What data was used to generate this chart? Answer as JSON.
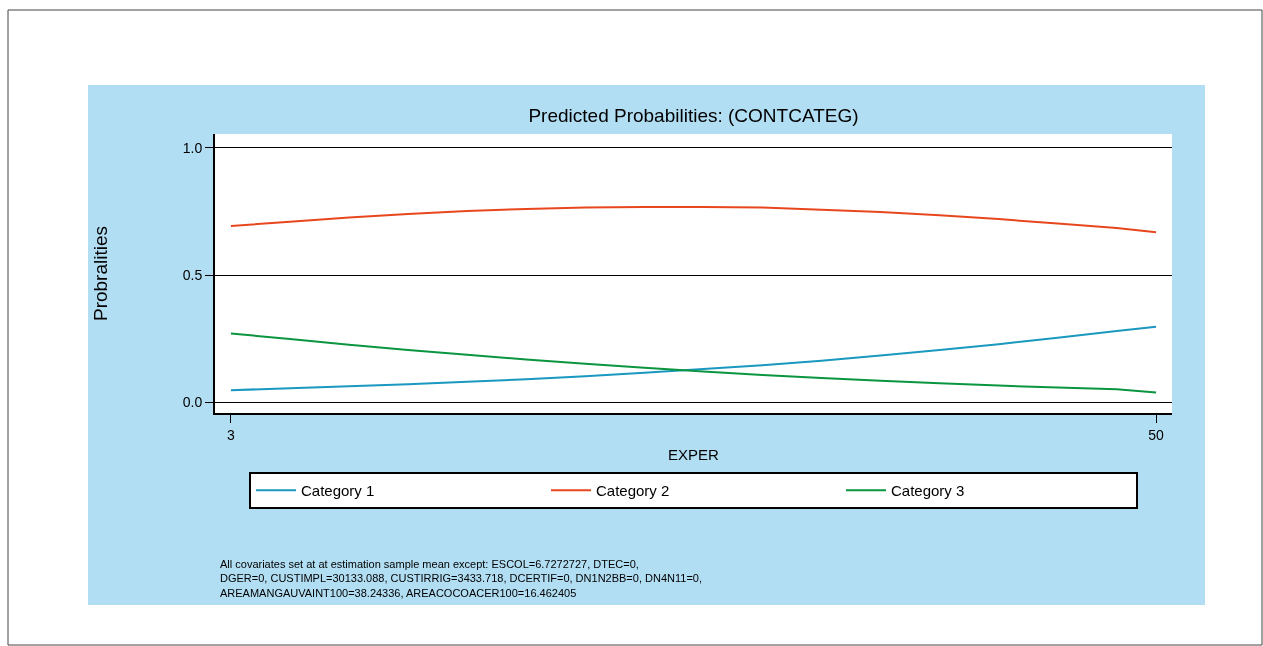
{
  "chart_data": {
    "type": "line",
    "title": "Predicted Probabilities: (CONTCATEG)",
    "xlabel": "EXPER",
    "ylabel": "Probralities",
    "x": [
      3,
      6,
      9,
      12,
      15,
      18,
      21,
      24,
      27,
      30,
      33,
      36,
      39,
      42,
      45,
      48,
      50
    ],
    "series": [
      {
        "name": "Category 1",
        "color": "#1a98c0",
        "values": [
          0.047,
          0.054,
          0.062,
          0.07,
          0.08,
          0.09,
          0.102,
          0.115,
          0.13,
          0.145,
          0.163,
          0.183,
          0.205,
          0.228,
          0.253,
          0.28,
          0.296
        ]
      },
      {
        "name": "Category 2",
        "color": "#e8471e",
        "values": [
          0.693,
          0.71,
          0.726,
          0.74,
          0.752,
          0.76,
          0.766,
          0.768,
          0.768,
          0.766,
          0.757,
          0.748,
          0.735,
          0.72,
          0.703,
          0.685,
          0.668
        ]
      },
      {
        "name": "Category 3",
        "color": "#0b9541",
        "values": [
          0.27,
          0.248,
          0.226,
          0.205,
          0.186,
          0.168,
          0.151,
          0.135,
          0.12,
          0.107,
          0.095,
          0.084,
          0.074,
          0.065,
          0.057,
          0.05,
          0.038
        ]
      }
    ],
    "xlim": [
      2.19,
      50.81
    ],
    "xticks": [
      3,
      50
    ],
    "ylim": [
      -0.043,
      1.055
    ],
    "yticks": [
      {
        "value": 0,
        "label": "0.0"
      },
      {
        "value": 0.5,
        "label": "0.5"
      },
      {
        "value": 1,
        "label": "1.0"
      }
    ],
    "grid": "y",
    "legend": "bottom",
    "marker": "none",
    "line_style": "solid",
    "annotations": [
      "All covariates set at at estimation sample mean except: ESCOL=6.7272727, DTEC=0,\nDGER=0, CUSTIMPL=30133.088, CUSTIRRIG=3433.718, DCERTIF=0, DN1N2BB=0, DN4N11=0,\nAREAMANGAUVAINT100=38.24336, AREACOCOACER100=16.462405"
    ]
  }
}
